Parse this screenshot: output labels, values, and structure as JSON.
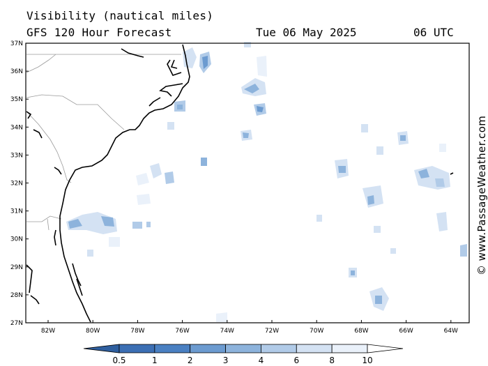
{
  "title": {
    "line1": "Visibility (nautical miles)",
    "line2": "GFS 120 Hour Forecast",
    "date": "Tue 06 May 2025",
    "time": "06 UTC"
  },
  "map": {
    "lat_labels": [
      "37N",
      "36N",
      "35N",
      "34N",
      "33N",
      "32N",
      "31N",
      "30N",
      "29N",
      "28N",
      "27N"
    ],
    "lon_labels": [
      "82W",
      "80W",
      "78W",
      "76W",
      "74W",
      "72W",
      "70W",
      "68W",
      "66W",
      "64W"
    ],
    "lat_range": [
      27,
      37
    ],
    "lon_range": [
      -83,
      -63
    ]
  },
  "colorbar": {
    "labels": [
      "0.5",
      "1",
      "2",
      "3",
      "4",
      "6",
      "8",
      "10"
    ],
    "colors": [
      "#3c6fb4",
      "#4a80c2",
      "#6c9bd0",
      "#8db3dc",
      "#b1cbe8",
      "#d4e2f3",
      "#eaf1fa",
      "#ffffff"
    ]
  },
  "credit": "© www.PassageWeather.com",
  "colors": {
    "coast": "#000000",
    "state_border": "#9a9a9a",
    "light_fill": "#c9dbf0",
    "mid_fill": "#8fb3de",
    "dark_fill": "#5a88c6"
  }
}
